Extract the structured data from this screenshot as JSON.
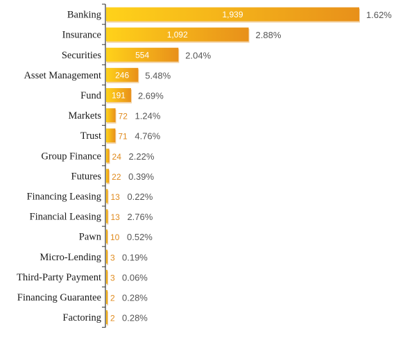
{
  "chart_data": {
    "type": "bar",
    "orientation": "horizontal",
    "title": "",
    "xlabel": "",
    "ylabel": "",
    "categories": [
      "Banking",
      "Insurance",
      "Securities",
      "Asset Management",
      "Fund",
      "Markets",
      "Trust",
      "Group Finance",
      "Futures",
      "Financing Leasing",
      "Financial Leasing",
      "Pawn",
      "Micro-Lending",
      "Third-Party Payment",
      "Financing Guarantee",
      "Factoring"
    ],
    "values": [
      1939,
      1092,
      554,
      246,
      191,
      72,
      71,
      24,
      22,
      13,
      13,
      10,
      3,
      3,
      2,
      2
    ],
    "value_labels": [
      "1,939",
      "1,092",
      "554",
      "246",
      "191",
      "72",
      "71",
      "24",
      "22",
      "13",
      "13",
      "10",
      "3",
      "3",
      "2",
      "2"
    ],
    "percent_labels": [
      "1.62%",
      "2.88%",
      "2.04%",
      "5.48%",
      "2.69%",
      "1.24%",
      "4.76%",
      "2.22%",
      "0.39%",
      "0.22%",
      "2.76%",
      "0.52%",
      "0.19%",
      "0.06%",
      "0.28%",
      "0.28%"
    ],
    "xlim": [
      0,
      1939
    ],
    "grid": false,
    "colors": {
      "bar_start": "#ffd21a",
      "bar_end": "#e8901a",
      "bar_shadow": "#f3d3a6",
      "value_outside": "#e08a1c",
      "percent": "#555555",
      "axis": "#333333"
    }
  }
}
